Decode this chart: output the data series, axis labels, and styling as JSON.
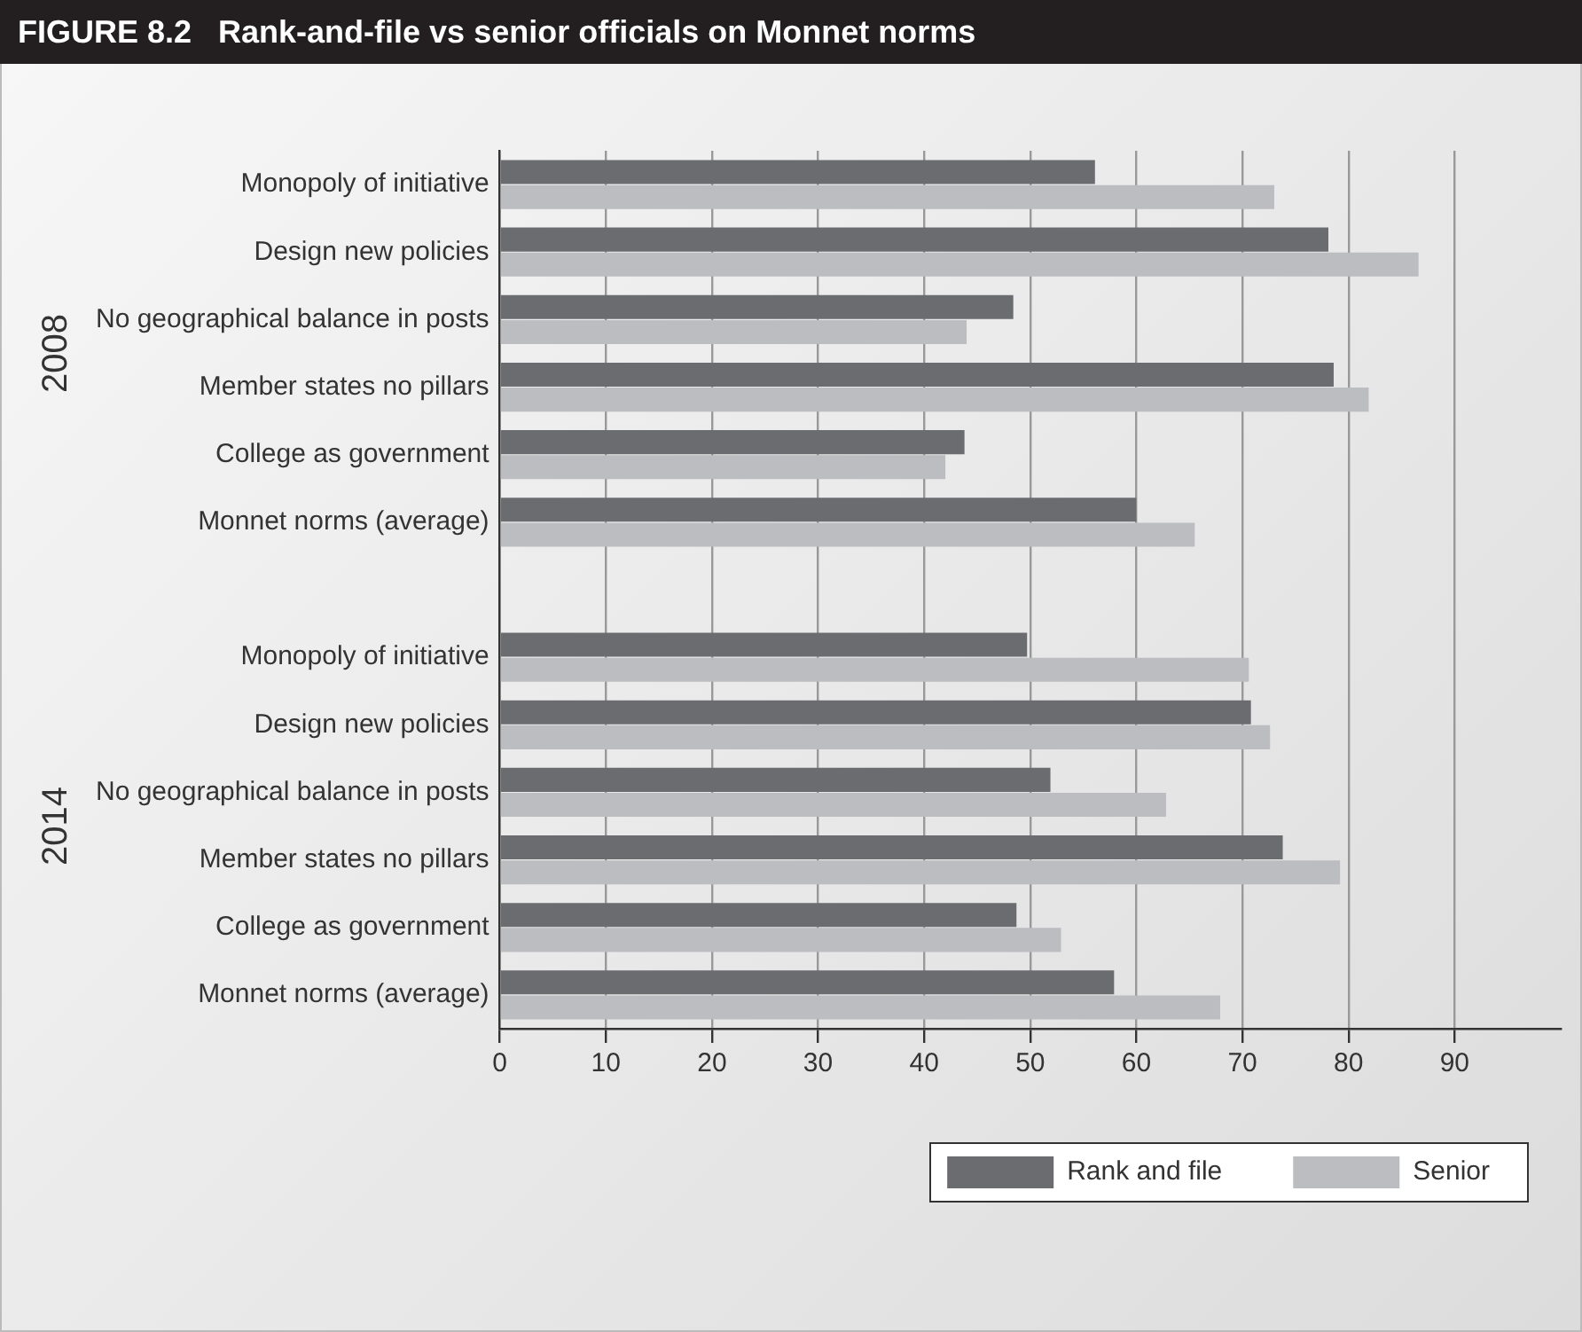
{
  "chart_data": {
    "type": "bar",
    "orientation": "horizontal",
    "title": "FIGURE 8.2   Rank-and-file vs senior officials on Monnet norms",
    "categories": [
      "Monopoly of initiative",
      "Design new policies",
      "No geographical balance in posts",
      "Member states no pillars",
      "College as government",
      "Monnet norms (average)",
      null,
      "Monopoly of initiative",
      "Design new policies",
      "No geographical balance in posts",
      "Member states no pillars",
      "College as government",
      "Monnet norms (average)"
    ],
    "series": [
      {
        "name": "Rank and file",
        "color": "#6b6c70",
        "values": [
          56.1,
          78.1,
          48.4,
          78.6,
          43.8,
          60.0,
          null,
          49.7,
          70.8,
          51.9,
          73.8,
          48.7,
          57.9
        ]
      },
      {
        "name": "Senior",
        "color": "#bcbdc0",
        "values": [
          73.0,
          86.6,
          44.0,
          81.9,
          42.0,
          65.5,
          null,
          70.6,
          72.6,
          62.8,
          79.2,
          52.9,
          67.9
        ]
      }
    ],
    "annotations": [
      "2008",
      "2014"
    ],
    "xlim": [
      0,
      100
    ],
    "xticks": [
      0,
      10,
      20,
      30,
      40,
      50,
      60,
      70,
      80,
      90
    ],
    "grid": "x",
    "legend": "bottom"
  }
}
